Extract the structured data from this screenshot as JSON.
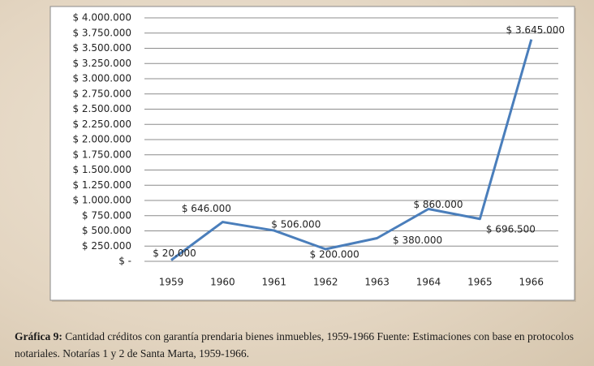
{
  "chart_data": {
    "type": "line",
    "categories": [
      "1959",
      "1960",
      "1961",
      "1962",
      "1963",
      "1964",
      "1965",
      "1966"
    ],
    "values": [
      20000,
      646000,
      506000,
      200000,
      380000,
      860000,
      696500,
      3645000
    ],
    "value_labels": [
      "$ 20.000",
      "$ 646.000",
      "$ 506.000",
      "$ 200.000",
      "$ 380.000",
      "$ 860.000",
      "$ 696.500",
      "$ 3.645.000"
    ],
    "color": "#4a7ebb",
    "ylim": [
      0,
      4000000
    ],
    "yticks": [
      {
        "value": 0,
        "label": "$ -"
      },
      {
        "value": 250000,
        "label": "$ 250.000"
      },
      {
        "value": 500000,
        "label": "$ 500.000"
      },
      {
        "value": 750000,
        "label": "$ 750.000"
      },
      {
        "value": 1000000,
        "label": "$ 1.000.000"
      },
      {
        "value": 1250000,
        "label": "$ 1.250.000"
      },
      {
        "value": 1500000,
        "label": "$ 1.500.000"
      },
      {
        "value": 1750000,
        "label": "$ 1.750.000"
      },
      {
        "value": 2000000,
        "label": "$ 2.000.000"
      },
      {
        "value": 2250000,
        "label": "$ 2.250.000"
      },
      {
        "value": 2500000,
        "label": "$ 2.500.000"
      },
      {
        "value": 2750000,
        "label": "$ 2.750.000"
      },
      {
        "value": 3000000,
        "label": "$ 3.000.000"
      },
      {
        "value": 3250000,
        "label": "$ 3.250.000"
      },
      {
        "value": 3500000,
        "label": "$ 3.500.000"
      },
      {
        "value": 3750000,
        "label": "$ 3.750.000"
      },
      {
        "value": 4000000,
        "label": "$ 4.000.000"
      }
    ],
    "grid": true,
    "caption": {
      "label": "Gráfica 9:",
      "text": "Cantidad créditos con garantía prendaria bienes inmuebles, 1959-1966 Fuente: Estimaciones con base en protocolos notariales. Notarías 1 y 2 de Santa Marta, 1959-1966."
    }
  }
}
